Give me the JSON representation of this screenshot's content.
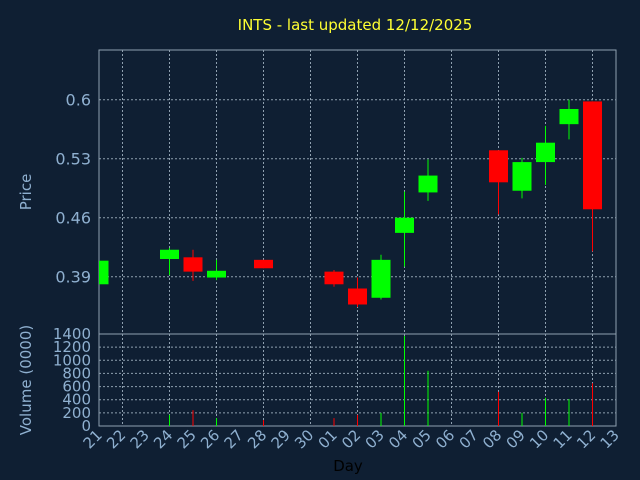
{
  "chart_data": [
    {
      "type": "candlestick",
      "title": "INTS - last updated 12/12/2025",
      "ylabel": "Price",
      "open": [
        0.381,
        null,
        null,
        0.411,
        0.413,
        0.389,
        null,
        0.41,
        null,
        null,
        0.396,
        0.376,
        0.365,
        0.442,
        0.49,
        null,
        null,
        0.54,
        0.492,
        0.526,
        0.571,
        0.598,
        null
      ],
      "high": [
        0.409,
        null,
        null,
        0.424,
        0.422,
        0.41,
        null,
        0.41,
        null,
        null,
        0.398,
        0.389,
        0.416,
        0.491,
        0.529,
        null,
        null,
        0.54,
        0.531,
        0.569,
        0.6,
        0.598,
        null
      ],
      "low": [
        0.381,
        null,
        null,
        0.392,
        0.385,
        0.386,
        null,
        0.4,
        null,
        null,
        0.378,
        0.354,
        0.363,
        0.402,
        0.48,
        null,
        null,
        0.464,
        0.483,
        0.499,
        0.553,
        0.42,
        null
      ],
      "close": [
        0.409,
        null,
        null,
        0.422,
        0.396,
        0.397,
        null,
        0.4,
        null,
        null,
        0.381,
        0.357,
        0.41,
        0.46,
        0.51,
        null,
        null,
        0.502,
        0.526,
        0.549,
        0.589,
        0.47,
        null
      ],
      "up_color": "#00ff00",
      "down_color": "#ff0000",
      "ylim": [
        0.322,
        0.659
      ],
      "yticks": [
        0.39,
        0.46,
        0.53,
        0.6
      ],
      "grid": true
    },
    {
      "type": "bar",
      "ylabel": "Volume (0000)",
      "xlabel": "Day",
      "categories": [
        "21",
        "22",
        "23",
        "24",
        "25",
        "26",
        "27",
        "28",
        "29",
        "30",
        "01",
        "02",
        "03",
        "04",
        "05",
        "06",
        "07",
        "08",
        "09",
        "10",
        "11",
        "12",
        "13"
      ],
      "values": [
        null,
        null,
        null,
        170,
        240,
        120,
        null,
        90,
        null,
        null,
        120,
        170,
        200,
        1370,
        840,
        null,
        null,
        520,
        200,
        430,
        410,
        650,
        null
      ],
      "up_color": "#00ff00",
      "down_color": "#ff0000",
      "ylim": [
        0,
        1400
      ],
      "yticks": [
        0,
        200,
        400,
        600,
        800,
        1000,
        1200,
        1400
      ],
      "grid": true
    }
  ]
}
